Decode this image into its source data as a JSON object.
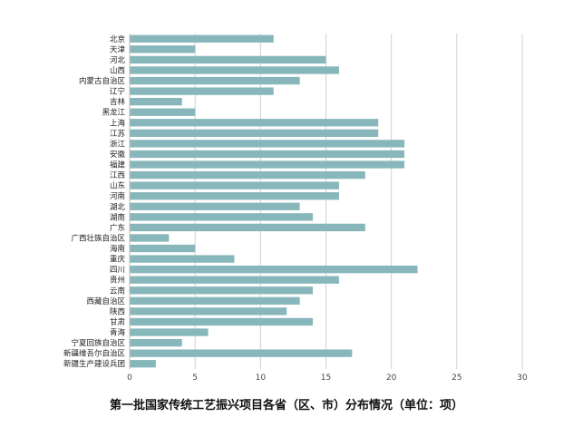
{
  "chart_data": {
    "type": "bar",
    "orientation": "horizontal",
    "title": "第一批国家传统工艺振兴项目各省（区、市）分布情况（单位：项）",
    "categories": [
      "北京",
      "天津",
      "河北",
      "山西",
      "内蒙古自治区",
      "辽宁",
      "吉林",
      "黑龙江",
      "上海",
      "江苏",
      "浙江",
      "安徽",
      "福建",
      "江西",
      "山东",
      "河南",
      "湖北",
      "湖南",
      "广东",
      "广西壮族自治区",
      "海南",
      "重庆",
      "四川",
      "贵州",
      "云南",
      "西藏自治区",
      "陕西",
      "甘肃",
      "青海",
      "宁夏回族自治区",
      "新疆维吾尔自治区",
      "新疆生产建设兵团"
    ],
    "values": [
      11,
      5,
      15,
      16,
      13,
      11,
      4,
      5,
      19,
      19,
      21,
      21,
      21,
      18,
      16,
      16,
      13,
      14,
      18,
      3,
      5,
      8,
      22,
      16,
      14,
      13,
      12,
      14,
      6,
      4,
      17,
      2
    ],
    "xlim": [
      0,
      30
    ],
    "xticks": [
      0,
      5,
      10,
      15,
      20,
      25,
      30
    ],
    "grid": "vertical",
    "bar_color": "#88b7bb"
  }
}
